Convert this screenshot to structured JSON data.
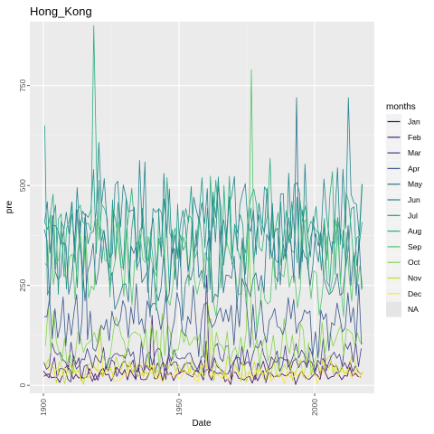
{
  "chart_data": {
    "type": "line",
    "title": "Hong_Kong",
    "xlabel": "Date",
    "ylabel": "pre",
    "x_range": [
      1900,
      2017
    ],
    "ylim": [
      -20,
      910
    ],
    "x_ticks": [
      1900,
      1950,
      2000
    ],
    "y_ticks": [
      0,
      250,
      500,
      750
    ],
    "grid": true,
    "legend": {
      "title": "months",
      "placement": "right",
      "entries": [
        "Jan",
        "Feb",
        "Mar",
        "Apr",
        "May",
        "Jun",
        "Jul",
        "Aug",
        "Sep",
        "Oct",
        "Nov",
        "Dec",
        "NA"
      ]
    },
    "series": [
      {
        "name": "Jan",
        "color": "#440154",
        "mean": 25,
        "amp": 25,
        "max": 100,
        "peak": {
          "x": 1960,
          "y": 110
        }
      },
      {
        "name": "Feb",
        "color": "#482173",
        "mean": 45,
        "amp": 35,
        "max": 160,
        "peak": {
          "x": 1940,
          "y": 175
        }
      },
      {
        "name": "Mar",
        "color": "#433E85",
        "mean": 70,
        "amp": 55,
        "max": 260,
        "peak": {
          "x": 1960,
          "y": 275
        }
      },
      {
        "name": "Apr",
        "color": "#38598C",
        "mean": 160,
        "amp": 90,
        "max": 390,
        "peak": {
          "x": 1915,
          "y": 420
        }
      },
      {
        "name": "May",
        "color": "#2D708E",
        "mean": 300,
        "amp": 150,
        "max": 650,
        "peak": {
          "x": 1993,
          "y": 720
        }
      },
      {
        "name": "Jun",
        "color": "#25858E",
        "mean": 400,
        "amp": 180,
        "max": 700,
        "peak": {
          "x": 2012,
          "y": 720
        }
      },
      {
        "name": "Jul",
        "color": "#1E9B8A",
        "mean": 380,
        "amp": 160,
        "max": 680,
        "peak": {
          "x": 1900,
          "y": 650
        }
      },
      {
        "name": "Aug",
        "color": "#2BB07F",
        "mean": 390,
        "amp": 170,
        "max": 700,
        "peak": {
          "x": 1918,
          "y": 900
        }
      },
      {
        "name": "Sep",
        "color": "#51C56A",
        "mean": 300,
        "amp": 140,
        "max": 600,
        "peak": {
          "x": 1976,
          "y": 790
        }
      },
      {
        "name": "Oct",
        "color": "#85D54A",
        "mean": 110,
        "amp": 85,
        "max": 320,
        "peak": {
          "x": 1975,
          "y": 380
        }
      },
      {
        "name": "Nov",
        "color": "#C2DF23",
        "mean": 40,
        "amp": 40,
        "max": 190,
        "peak": {
          "x": 1960,
          "y": 200
        }
      },
      {
        "name": "Dec",
        "color": "#FDE725",
        "mean": 30,
        "amp": 30,
        "max": 140,
        "peak": {
          "x": 1920,
          "y": 150
        }
      }
    ],
    "na_color": "#E5E5E5"
  }
}
